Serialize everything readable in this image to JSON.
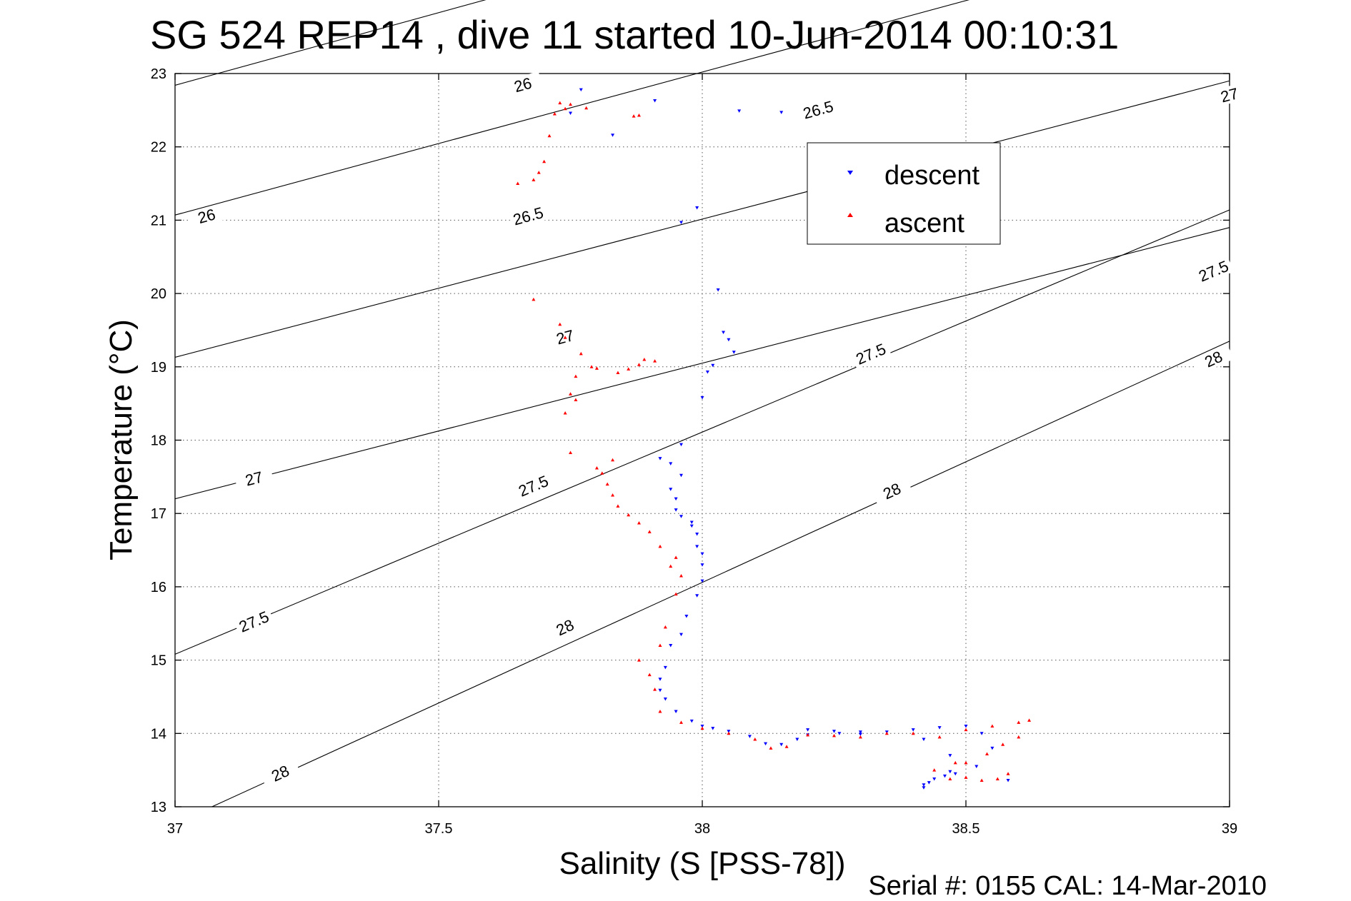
{
  "chart_data": {
    "type": "scatter",
    "title": "SG 524   REP14  , dive 11 started 10-Jun-2014 00:10:31",
    "xlabel": "Salinity (S [PSS-78])",
    "ylabel": "Temperature (°C)",
    "footer": "Serial #: 0155  CAL: 14-Mar-2010",
    "xlim": [
      37,
      39
    ],
    "ylim": [
      13,
      23
    ],
    "xticks": [
      37,
      37.5,
      38,
      38.5,
      39
    ],
    "yticks": [
      13,
      14,
      15,
      16,
      17,
      18,
      19,
      20,
      21,
      22,
      23
    ],
    "xtick_labels": [
      "37",
      "37.5",
      "38",
      "38.5",
      "39"
    ],
    "ytick_labels": [
      "13",
      "14",
      "15",
      "16",
      "17",
      "18",
      "19",
      "20",
      "21",
      "22",
      "23"
    ],
    "grid": true,
    "legend_position": "top-right",
    "isopycnals": [
      {
        "sigma": "26",
        "points": [
          [
            37,
            22.84
          ],
          [
            39,
            26.8
          ]
        ],
        "labels": [
          [
            37.66,
            22.84
          ],
          [
            37.06,
            21.05
          ]
        ]
      },
      {
        "sigma": "26.5",
        "points": [
          [
            37,
            21.07
          ],
          [
            39,
            24.97
          ]
        ],
        "labels": [
          [
            38.22,
            22.5
          ],
          [
            37.67,
            21.05
          ]
        ]
      },
      {
        "sigma": "27",
        "points": [
          [
            37,
            19.13
          ],
          [
            39,
            22.9
          ]
        ],
        "labels": [
          [
            39.0,
            22.7
          ],
          [
            37.74,
            19.4
          ]
        ]
      },
      {
        "sigma": "27",
        "points": [
          [
            37,
            17.2
          ],
          [
            39,
            20.9
          ]
        ],
        "labels": [
          [
            37.15,
            17.47
          ]
        ]
      },
      {
        "sigma": "27.5",
        "points": [
          [
            37,
            15.08
          ],
          [
            39,
            21.14
          ]
        ],
        "labels": [
          [
            38.97,
            20.3
          ],
          [
            38.32,
            19.17
          ],
          [
            37.68,
            17.37
          ],
          [
            37.15,
            15.52
          ]
        ]
      },
      {
        "sigma": "28",
        "points": [
          [
            37.07,
            13.0
          ],
          [
            39,
            19.35
          ]
        ],
        "labels": [
          [
            38.97,
            19.1
          ],
          [
            38.36,
            17.3
          ],
          [
            37.74,
            15.44
          ],
          [
            37.2,
            13.45
          ]
        ]
      }
    ],
    "series": [
      {
        "name": "descent",
        "color": "#0000ff",
        "marker": "triangle-down",
        "points": [
          [
            37.77,
            22.78
          ],
          [
            37.91,
            22.63
          ],
          [
            38.07,
            22.49
          ],
          [
            38.15,
            22.47
          ],
          [
            37.75,
            22.46
          ],
          [
            37.83,
            22.16
          ],
          [
            37.99,
            21.17
          ],
          [
            37.96,
            20.97
          ],
          [
            38.03,
            20.05
          ],
          [
            38.04,
            19.47
          ],
          [
            38.05,
            19.37
          ],
          [
            38.06,
            19.2
          ],
          [
            38.02,
            19.02
          ],
          [
            38.01,
            18.93
          ],
          [
            38.0,
            18.58
          ],
          [
            37.96,
            17.94
          ],
          [
            37.92,
            17.75
          ],
          [
            37.94,
            17.68
          ],
          [
            37.96,
            17.52
          ],
          [
            37.94,
            17.33
          ],
          [
            37.95,
            17.2
          ],
          [
            37.95,
            17.05
          ],
          [
            37.96,
            16.96
          ],
          [
            37.98,
            16.88
          ],
          [
            37.98,
            16.83
          ],
          [
            37.99,
            16.72
          ],
          [
            37.99,
            16.55
          ],
          [
            38.0,
            16.45
          ],
          [
            38.0,
            16.3
          ],
          [
            38.0,
            16.08
          ],
          [
            37.99,
            15.88
          ],
          [
            37.97,
            15.6
          ],
          [
            37.96,
            15.35
          ],
          [
            37.94,
            15.2
          ],
          [
            37.93,
            14.9
          ],
          [
            37.92,
            14.74
          ],
          [
            37.92,
            14.59
          ],
          [
            37.93,
            14.47
          ],
          [
            37.95,
            14.3
          ],
          [
            37.98,
            14.17
          ],
          [
            38.0,
            14.1
          ],
          [
            38.02,
            14.07
          ],
          [
            38.05,
            14.03
          ],
          [
            38.09,
            13.96
          ],
          [
            38.12,
            13.86
          ],
          [
            38.15,
            13.85
          ],
          [
            38.2,
            13.98
          ],
          [
            38.25,
            14.03
          ],
          [
            38.3,
            13.99
          ],
          [
            38.35,
            14.02
          ],
          [
            38.4,
            14.05
          ],
          [
            38.42,
            13.92
          ],
          [
            38.45,
            14.08
          ],
          [
            38.5,
            14.1
          ],
          [
            38.53,
            14.0
          ],
          [
            38.42,
            13.3
          ],
          [
            38.43,
            13.33
          ],
          [
            38.44,
            13.38
          ],
          [
            38.46,
            13.42
          ],
          [
            38.47,
            13.48
          ],
          [
            38.48,
            13.45
          ],
          [
            38.42,
            13.26
          ],
          [
            38.58,
            13.36
          ],
          [
            38.52,
            13.55
          ],
          [
            38.55,
            13.8
          ],
          [
            38.47,
            13.7
          ],
          [
            38.3,
            14.02
          ],
          [
            38.26,
            14.0
          ],
          [
            38.2,
            14.05
          ],
          [
            38.18,
            13.92
          ]
        ]
      },
      {
        "name": "ascent",
        "color": "#ff0000",
        "marker": "triangle-up",
        "points": [
          [
            37.73,
            22.6
          ],
          [
            37.75,
            22.58
          ],
          [
            37.74,
            22.52
          ],
          [
            37.78,
            22.53
          ],
          [
            37.72,
            22.45
          ],
          [
            37.88,
            22.43
          ],
          [
            37.87,
            22.42
          ],
          [
            37.71,
            22.15
          ],
          [
            37.7,
            21.8
          ],
          [
            37.69,
            21.65
          ],
          [
            37.68,
            21.55
          ],
          [
            37.65,
            21.5
          ],
          [
            37.68,
            19.92
          ],
          [
            37.73,
            19.58
          ],
          [
            37.74,
            19.4
          ],
          [
            37.77,
            19.18
          ],
          [
            37.79,
            19.0
          ],
          [
            37.8,
            18.98
          ],
          [
            37.76,
            18.87
          ],
          [
            37.75,
            18.63
          ],
          [
            37.76,
            18.55
          ],
          [
            37.74,
            18.37
          ],
          [
            37.84,
            18.92
          ],
          [
            37.86,
            18.97
          ],
          [
            37.88,
            19.03
          ],
          [
            37.89,
            19.1
          ],
          [
            37.91,
            19.08
          ],
          [
            37.75,
            17.83
          ],
          [
            37.8,
            17.62
          ],
          [
            37.81,
            17.55
          ],
          [
            37.83,
            17.73
          ],
          [
            37.82,
            17.4
          ],
          [
            37.83,
            17.25
          ],
          [
            37.84,
            17.1
          ],
          [
            37.86,
            16.98
          ],
          [
            37.88,
            16.87
          ],
          [
            37.9,
            16.75
          ],
          [
            37.92,
            16.55
          ],
          [
            37.95,
            16.4
          ],
          [
            37.94,
            16.28
          ],
          [
            37.96,
            16.15
          ],
          [
            37.95,
            15.9
          ],
          [
            37.93,
            15.45
          ],
          [
            37.92,
            15.2
          ],
          [
            37.88,
            15.0
          ],
          [
            37.9,
            14.8
          ],
          [
            37.91,
            14.6
          ],
          [
            37.92,
            14.3
          ],
          [
            37.96,
            14.15
          ],
          [
            38.0,
            14.07
          ],
          [
            38.05,
            14.0
          ],
          [
            38.1,
            13.92
          ],
          [
            38.13,
            13.8
          ],
          [
            38.16,
            13.82
          ],
          [
            38.2,
            13.98
          ],
          [
            38.25,
            13.97
          ],
          [
            38.3,
            13.95
          ],
          [
            38.35,
            14.0
          ],
          [
            38.4,
            14.0
          ],
          [
            38.45,
            13.95
          ],
          [
            38.5,
            14.05
          ],
          [
            38.55,
            14.1
          ],
          [
            38.6,
            14.15
          ],
          [
            38.62,
            14.18
          ],
          [
            38.5,
            13.4
          ],
          [
            38.53,
            13.36
          ],
          [
            38.56,
            13.38
          ],
          [
            38.58,
            13.45
          ],
          [
            38.47,
            13.38
          ],
          [
            38.5,
            13.6
          ],
          [
            38.54,
            13.72
          ],
          [
            38.57,
            13.85
          ],
          [
            38.6,
            13.95
          ],
          [
            38.48,
            13.6
          ],
          [
            38.44,
            13.5
          ]
        ]
      }
    ]
  }
}
